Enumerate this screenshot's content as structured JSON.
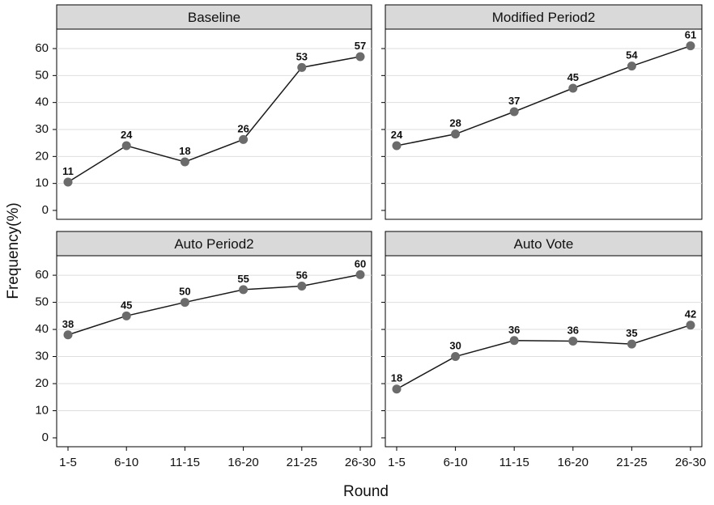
{
  "chart_data": {
    "type": "line",
    "xlabel": "Round",
    "ylabel": "Frequency(%)",
    "categories": [
      "1-5",
      "6-10",
      "11-15",
      "16-20",
      "21-25",
      "26-30"
    ],
    "ylim": [
      0,
      60
    ],
    "yticks": [
      0,
      10,
      20,
      30,
      40,
      50,
      60
    ],
    "grid": true,
    "colors": {
      "marker": "#6b6b6b",
      "line": "#1a1a1a",
      "header_fill": "#d9d9d9",
      "grid": "#dedede"
    },
    "panels": [
      {
        "title": "Baseline",
        "values": [
          10.5,
          24,
          18,
          26.3,
          53,
          57
        ],
        "labels": [
          "11",
          "24",
          "18",
          "26",
          "53",
          "57"
        ]
      },
      {
        "title": "Modified Period2",
        "values": [
          24,
          28.3,
          36.6,
          45.3,
          53.5,
          61
        ],
        "labels": [
          "24",
          "28",
          "37",
          "45",
          "54",
          "61"
        ]
      },
      {
        "title": "Auto Period2",
        "values": [
          38,
          45,
          50,
          54.7,
          56,
          60.2
        ],
        "labels": [
          "38",
          "45",
          "50",
          "55",
          "56",
          "60"
        ]
      },
      {
        "title": "Auto Vote",
        "values": [
          18,
          30,
          35.9,
          35.7,
          34.6,
          41.6
        ],
        "labels": [
          "18",
          "30",
          "36",
          "36",
          "35",
          "42"
        ]
      }
    ]
  }
}
